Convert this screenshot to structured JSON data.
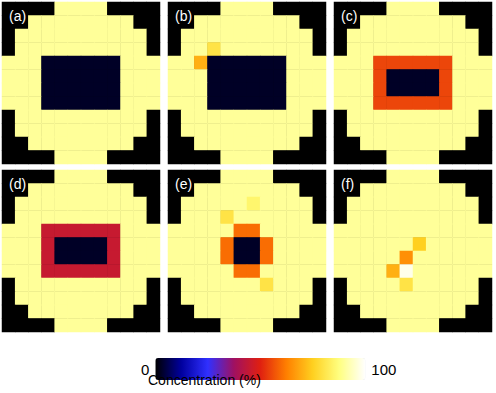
{
  "chart_data": {
    "type": "heatmap",
    "panels": [
      {
        "title": "(a)",
        "cells": [
          [
            0,
            0,
            0,
            0,
            90,
            90,
            90,
            90,
            0,
            0,
            0,
            0
          ],
          [
            0,
            0,
            90,
            90,
            90,
            90,
            90,
            90,
            90,
            90,
            0,
            0
          ],
          [
            0,
            90,
            90,
            90,
            90,
            90,
            90,
            90,
            90,
            90,
            90,
            0
          ],
          [
            0,
            90,
            90,
            90,
            90,
            90,
            90,
            90,
            90,
            90,
            90,
            0
          ],
          [
            90,
            90,
            90,
            3,
            3,
            3,
            3,
            3,
            3,
            90,
            90,
            90
          ],
          [
            90,
            90,
            90,
            3,
            3,
            3,
            3,
            3,
            3,
            90,
            90,
            90
          ],
          [
            90,
            90,
            90,
            3,
            3,
            3,
            3,
            3,
            3,
            90,
            90,
            90
          ],
          [
            90,
            90,
            90,
            3,
            3,
            3,
            3,
            3,
            3,
            90,
            90,
            90
          ],
          [
            0,
            90,
            90,
            90,
            90,
            90,
            90,
            90,
            90,
            90,
            90,
            0
          ],
          [
            0,
            90,
            90,
            90,
            90,
            90,
            90,
            90,
            90,
            90,
            90,
            0
          ],
          [
            0,
            0,
            90,
            90,
            90,
            90,
            90,
            90,
            90,
            90,
            0,
            0
          ],
          [
            0,
            0,
            0,
            0,
            90,
            90,
            90,
            90,
            0,
            0,
            0,
            0
          ]
        ]
      },
      {
        "title": "(b)",
        "cells": [
          [
            0,
            0,
            0,
            0,
            90,
            90,
            90,
            90,
            0,
            0,
            0,
            0
          ],
          [
            0,
            0,
            90,
            90,
            90,
            90,
            90,
            90,
            90,
            90,
            0,
            0
          ],
          [
            0,
            90,
            90,
            90,
            90,
            90,
            90,
            90,
            90,
            90,
            90,
            0
          ],
          [
            0,
            90,
            90,
            80,
            90,
            90,
            90,
            90,
            90,
            90,
            90,
            0
          ],
          [
            90,
            90,
            70,
            3,
            3,
            3,
            3,
            3,
            3,
            90,
            90,
            90
          ],
          [
            90,
            90,
            90,
            3,
            3,
            3,
            3,
            3,
            3,
            90,
            90,
            90
          ],
          [
            90,
            90,
            90,
            3,
            3,
            3,
            3,
            3,
            3,
            90,
            90,
            90
          ],
          [
            90,
            90,
            90,
            3,
            3,
            3,
            3,
            3,
            3,
            90,
            90,
            90
          ],
          [
            0,
            90,
            90,
            90,
            90,
            90,
            90,
            90,
            90,
            90,
            90,
            0
          ],
          [
            0,
            90,
            90,
            90,
            90,
            90,
            90,
            90,
            90,
            90,
            90,
            0
          ],
          [
            0,
            0,
            90,
            90,
            90,
            90,
            90,
            90,
            90,
            90,
            0,
            0
          ],
          [
            0,
            0,
            0,
            0,
            90,
            90,
            90,
            90,
            0,
            0,
            0,
            0
          ]
        ]
      },
      {
        "title": "(c)",
        "cells": [
          [
            0,
            0,
            0,
            0,
            90,
            90,
            90,
            90,
            0,
            0,
            0,
            0
          ],
          [
            0,
            0,
            90,
            90,
            90,
            90,
            90,
            90,
            90,
            90,
            0,
            0
          ],
          [
            0,
            90,
            90,
            90,
            90,
            90,
            90,
            90,
            90,
            90,
            90,
            0
          ],
          [
            0,
            90,
            90,
            90,
            90,
            90,
            90,
            90,
            90,
            90,
            90,
            0
          ],
          [
            90,
            90,
            90,
            55,
            55,
            55,
            55,
            55,
            55,
            90,
            90,
            90
          ],
          [
            90,
            90,
            90,
            55,
            3,
            3,
            3,
            3,
            55,
            90,
            90,
            90
          ],
          [
            90,
            90,
            90,
            55,
            3,
            3,
            3,
            3,
            55,
            90,
            90,
            90
          ],
          [
            90,
            90,
            90,
            55,
            55,
            55,
            55,
            55,
            55,
            90,
            90,
            90
          ],
          [
            0,
            90,
            90,
            90,
            90,
            90,
            90,
            90,
            90,
            90,
            90,
            0
          ],
          [
            0,
            90,
            90,
            90,
            90,
            90,
            90,
            90,
            90,
            90,
            90,
            0
          ],
          [
            0,
            0,
            90,
            90,
            90,
            90,
            90,
            90,
            90,
            90,
            0,
            0
          ],
          [
            0,
            0,
            0,
            0,
            90,
            90,
            90,
            90,
            0,
            0,
            0,
            0
          ]
        ]
      },
      {
        "title": "(d)",
        "cells": [
          [
            0,
            0,
            0,
            0,
            90,
            90,
            90,
            90,
            0,
            0,
            0,
            0
          ],
          [
            0,
            0,
            90,
            90,
            90,
            90,
            90,
            90,
            90,
            90,
            0,
            0
          ],
          [
            0,
            90,
            90,
            90,
            90,
            90,
            90,
            90,
            90,
            90,
            90,
            0
          ],
          [
            0,
            90,
            90,
            90,
            90,
            90,
            90,
            90,
            90,
            90,
            90,
            0
          ],
          [
            90,
            90,
            90,
            45,
            45,
            45,
            45,
            45,
            45,
            90,
            90,
            90
          ],
          [
            90,
            90,
            90,
            45,
            3,
            3,
            3,
            3,
            45,
            90,
            90,
            90
          ],
          [
            90,
            90,
            90,
            45,
            3,
            3,
            3,
            3,
            45,
            90,
            90,
            90
          ],
          [
            90,
            90,
            90,
            45,
            45,
            45,
            45,
            45,
            45,
            90,
            90,
            90
          ],
          [
            0,
            90,
            90,
            90,
            90,
            90,
            90,
            90,
            90,
            90,
            90,
            0
          ],
          [
            0,
            90,
            90,
            90,
            90,
            90,
            90,
            90,
            90,
            90,
            90,
            0
          ],
          [
            0,
            0,
            90,
            90,
            90,
            90,
            90,
            90,
            90,
            90,
            0,
            0
          ],
          [
            0,
            0,
            0,
            0,
            90,
            90,
            90,
            90,
            0,
            0,
            0,
            0
          ]
        ]
      },
      {
        "title": "(e)",
        "cells": [
          [
            0,
            0,
            0,
            0,
            90,
            90,
            90,
            90,
            0,
            0,
            0,
            0
          ],
          [
            0,
            0,
            90,
            90,
            90,
            90,
            90,
            90,
            90,
            90,
            0,
            0
          ],
          [
            0,
            90,
            90,
            90,
            90,
            90,
            85,
            90,
            90,
            90,
            90,
            0
          ],
          [
            0,
            90,
            90,
            90,
            80,
            90,
            90,
            90,
            90,
            90,
            90,
            0
          ],
          [
            90,
            90,
            90,
            90,
            90,
            60,
            60,
            90,
            90,
            90,
            90,
            90
          ],
          [
            90,
            90,
            90,
            90,
            60,
            3,
            3,
            60,
            90,
            90,
            90,
            90
          ],
          [
            90,
            90,
            90,
            90,
            60,
            3,
            3,
            60,
            90,
            90,
            90,
            90
          ],
          [
            90,
            90,
            90,
            90,
            90,
            60,
            60,
            90,
            90,
            90,
            90,
            90
          ],
          [
            0,
            90,
            90,
            90,
            90,
            90,
            90,
            80,
            90,
            90,
            90,
            0
          ],
          [
            0,
            90,
            90,
            90,
            90,
            90,
            90,
            90,
            90,
            90,
            90,
            0
          ],
          [
            0,
            0,
            90,
            90,
            90,
            90,
            90,
            90,
            90,
            90,
            0,
            0
          ],
          [
            0,
            0,
            0,
            0,
            90,
            90,
            90,
            90,
            0,
            0,
            0,
            0
          ]
        ]
      },
      {
        "title": "(f)",
        "cells": [
          [
            0,
            0,
            0,
            0,
            90,
            90,
            90,
            90,
            0,
            0,
            0,
            0
          ],
          [
            0,
            0,
            90,
            90,
            90,
            90,
            90,
            90,
            90,
            90,
            0,
            0
          ],
          [
            0,
            90,
            90,
            90,
            90,
            90,
            90,
            90,
            90,
            90,
            90,
            0
          ],
          [
            0,
            90,
            90,
            90,
            90,
            90,
            90,
            90,
            90,
            90,
            90,
            0
          ],
          [
            90,
            90,
            90,
            90,
            90,
            90,
            90,
            90,
            90,
            90,
            90,
            90
          ],
          [
            90,
            90,
            90,
            90,
            90,
            90,
            75,
            90,
            90,
            90,
            90,
            90
          ],
          [
            90,
            90,
            90,
            90,
            90,
            65,
            90,
            90,
            90,
            90,
            90,
            90
          ],
          [
            90,
            90,
            90,
            90,
            70,
            98,
            90,
            90,
            90,
            90,
            90,
            90
          ],
          [
            0,
            90,
            90,
            90,
            90,
            80,
            90,
            90,
            90,
            90,
            90,
            0
          ],
          [
            0,
            90,
            90,
            90,
            90,
            90,
            90,
            90,
            90,
            90,
            90,
            0
          ],
          [
            0,
            0,
            90,
            90,
            90,
            90,
            90,
            90,
            90,
            90,
            0,
            0
          ],
          [
            0,
            0,
            0,
            0,
            90,
            90,
            90,
            90,
            0,
            0,
            0,
            0
          ]
        ]
      }
    ],
    "colorbar": {
      "label": "Concentration (%)",
      "range": [
        0,
        100
      ],
      "ticks": [
        0,
        100
      ]
    }
  }
}
